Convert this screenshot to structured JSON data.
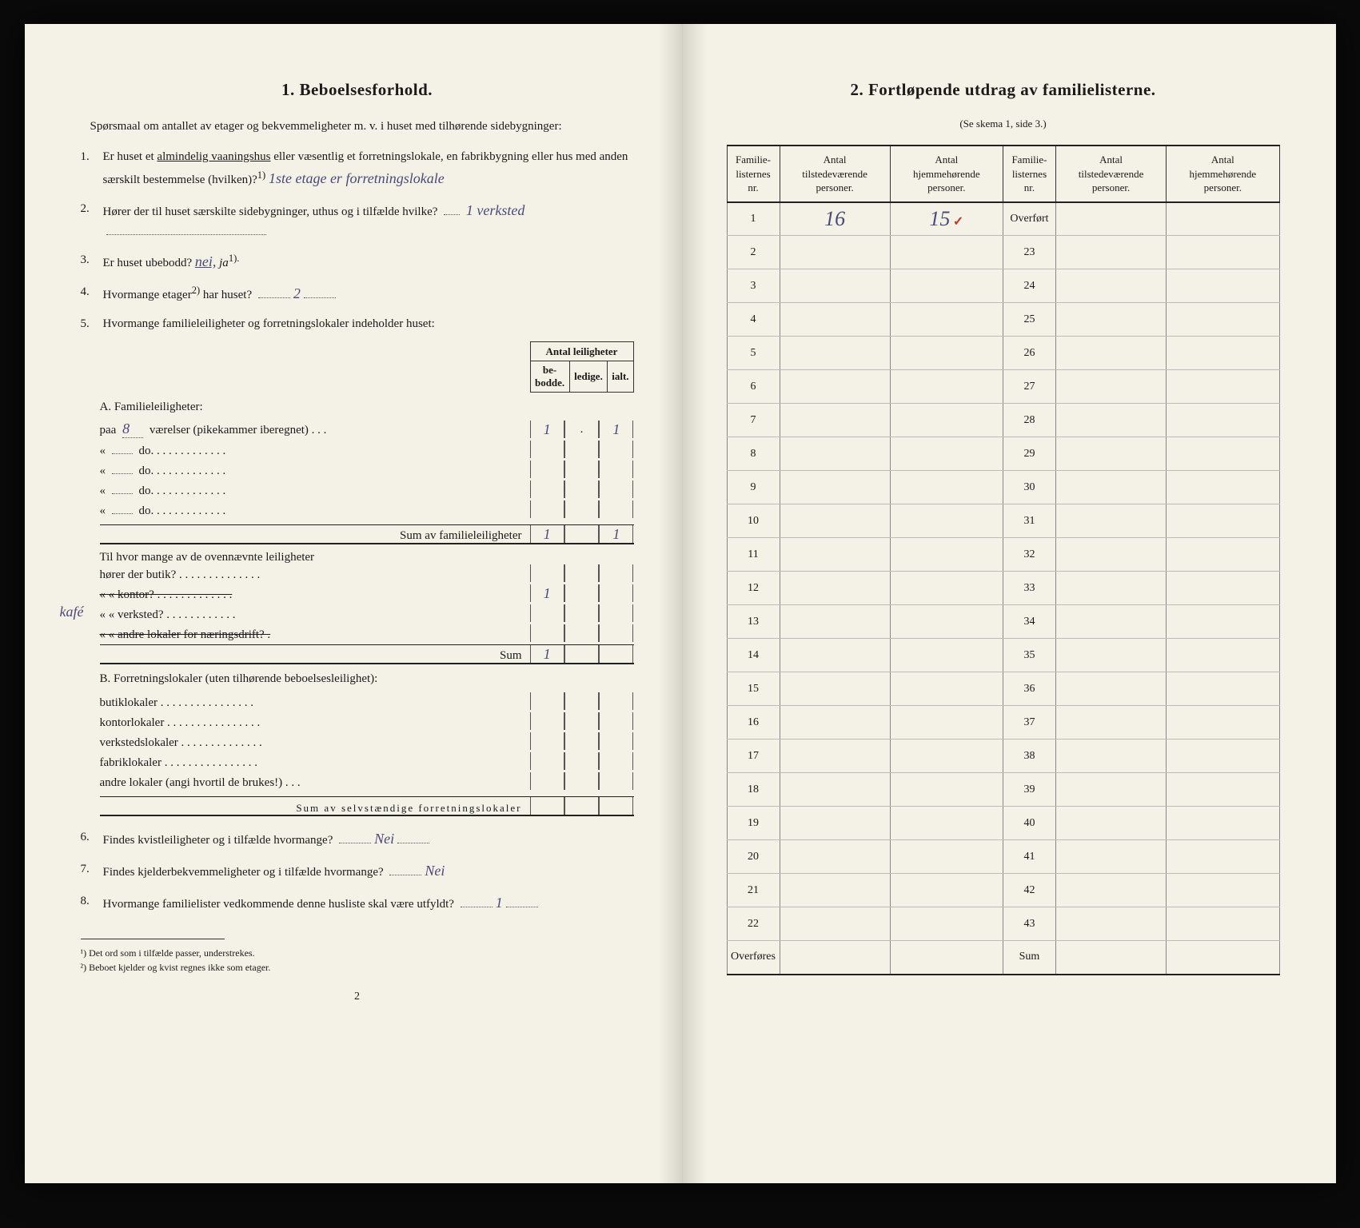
{
  "left": {
    "title": "1.   Beboelsesforhold.",
    "intro": "Spørsmaal om antallet av etager og bekvemmeligheter m. v. i huset med tilhørende sidebygninger:",
    "q1": {
      "num": "1.",
      "text_a": "Er huset et ",
      "underlined": "almindelig vaaningshus",
      "text_b": " eller væsentlig et forretningslokale, en fabrikbygning eller hus med anden særskilt bestemmelse (hvilken)?",
      "sup": "1)",
      "answer": "1ste etage er forretningslokale"
    },
    "q2": {
      "num": "2.",
      "text": "Hører der til huset særskilte sidebygninger, uthus og i tilfælde hvilke?",
      "answer": "1 verksted"
    },
    "q3": {
      "num": "3.",
      "text_a": "Er huset ubebodd?  ",
      "opt_nei": "nei,",
      "opt_ja": "ja",
      "sup": "1).",
      "sel": "nei"
    },
    "q4": {
      "num": "4.",
      "text_a": "Hvormange etager",
      "sup": "2)",
      "text_b": " har huset?",
      "answer": "2"
    },
    "q5": {
      "num": "5.",
      "text": "Hvormange familieleiligheter og forretningslokaler indeholder huset:"
    },
    "mini_header": {
      "span": "Antal leiligheter",
      "c1": "be-\nbodde.",
      "c2": "ledige.",
      "c3": "ialt."
    },
    "A_label": "A. Familieleiligheter:",
    "A_rows": [
      {
        "label": "paa",
        "val": "8",
        "rest": "værelser (pikekammer iberegnet)  .  .  .",
        "c1": "1",
        "c2": ".",
        "c3": "1"
      },
      {
        "label": "«",
        "val": "",
        "rest": "do.      .  .  .  .  .  .  .  .  .  .  .  .",
        "c1": "",
        "c2": "",
        "c3": ""
      },
      {
        "label": "«",
        "val": "",
        "rest": "do.      .  .  .  .  .  .  .  .  .  .  .  .",
        "c1": "",
        "c2": "",
        "c3": ""
      },
      {
        "label": "«",
        "val": "",
        "rest": "do.      .  .  .  .  .  .  .  .  .  .  .  .",
        "c1": "",
        "c2": "",
        "c3": ""
      },
      {
        "label": "«",
        "val": "",
        "rest": "do.      .  .  .  .  .  .  .  .  .  .  .  .",
        "c1": "",
        "c2": "",
        "c3": ""
      }
    ],
    "A_sum": {
      "label": "Sum av familieleiligheter",
      "c1": "1",
      "c2": "",
      "c3": "1"
    },
    "A2_intro": "Til hvor mange av de ovennævnte leiligheter",
    "A2_rows": [
      {
        "label": "hører der butik? . . . . . . . . . . . . . .",
        "val": ""
      },
      {
        "label": "«      «   kontor? . . . . . . . . . . . . .",
        "struck": true,
        "val": "1"
      },
      {
        "label": "«      «   verksted? . . . . . . . . . . . .",
        "val": ""
      },
      {
        "label": "«      «   andre lokaler for næringsdrift? .",
        "struck": true,
        "val": ""
      }
    ],
    "A2_margin": "kafé",
    "A2_sum": {
      "label": "Sum",
      "val": "1"
    },
    "B_label": "B. Forretningslokaler (uten tilhørende beboelsesleilighet):",
    "B_rows": [
      {
        "label": "butiklokaler  . . . . . . . . . . . . . . . .",
        "c1": "",
        "c2": "",
        "c3": ""
      },
      {
        "label": "kontorlokaler . . . . . . . . . . . . . . . .",
        "c1": "",
        "c2": "",
        "c3": ""
      },
      {
        "label": "verkstedslokaler . . . . . . . . . . . . . .",
        "c1": "",
        "c2": "",
        "c3": ""
      },
      {
        "label": "fabriklokaler . . . . . . . . . . . . . . . .",
        "c1": "",
        "c2": "",
        "c3": ""
      },
      {
        "label": "andre lokaler (angi hvortil de brukes!) . . .",
        "c1": "",
        "c2": "",
        "c3": ""
      }
    ],
    "B_sum": "Sum av selvstændige forretningslokaler",
    "q6": {
      "num": "6.",
      "text": "Findes kvistleiligheter og i tilfælde hvormange?",
      "answer": "Nei"
    },
    "q7": {
      "num": "7.",
      "text": "Findes kjelderbekvemmeligheter og i tilfælde hvormange?",
      "answer": "Nei"
    },
    "q8": {
      "num": "8.",
      "text": "Hvormange familielister vedkommende denne husliste skal være utfyldt?",
      "answer": "1"
    },
    "footnotes": [
      "¹) Det ord som i tilfælde passer, understrekes.",
      "²) Beboet kjelder og kvist regnes ikke som etager."
    ],
    "page_num": "2"
  },
  "right": {
    "title": "2.   Fortløpende utdrag av familielisterne.",
    "subtitle": "(Se skema 1, side 3.)",
    "headers": {
      "c1": "Familie-\nlisternes\nnr.",
      "c2": "Antal\ntilstedeværende\npersoner.",
      "c3": "Antal\nhjemmehørende\npersoner.",
      "c4": "Familie-\nlisternes\nnr.",
      "c5": "Antal\ntilstedeværende\npersoner.",
      "c6": "Antal\nhjemmehørende\npersoner."
    },
    "rows_left_nums": [
      "1",
      "2",
      "3",
      "4",
      "5",
      "6",
      "7",
      "8",
      "9",
      "10",
      "11",
      "12",
      "13",
      "14",
      "15",
      "16",
      "17",
      "18",
      "19",
      "20",
      "21",
      "22",
      "Overføres"
    ],
    "rows_right_nums": [
      "Overført",
      "23",
      "24",
      "25",
      "26",
      "27",
      "28",
      "29",
      "30",
      "31",
      "32",
      "33",
      "34",
      "35",
      "36",
      "37",
      "38",
      "39",
      "40",
      "41",
      "42",
      "43",
      "Sum"
    ],
    "row1": {
      "c2": "16",
      "c3": "15",
      "tick": "✓"
    },
    "colors": {
      "paper": "#f4f1e6",
      "ink": "#1a1a1a",
      "handwriting": "#4a4a7a",
      "red": "#c0392b"
    }
  }
}
